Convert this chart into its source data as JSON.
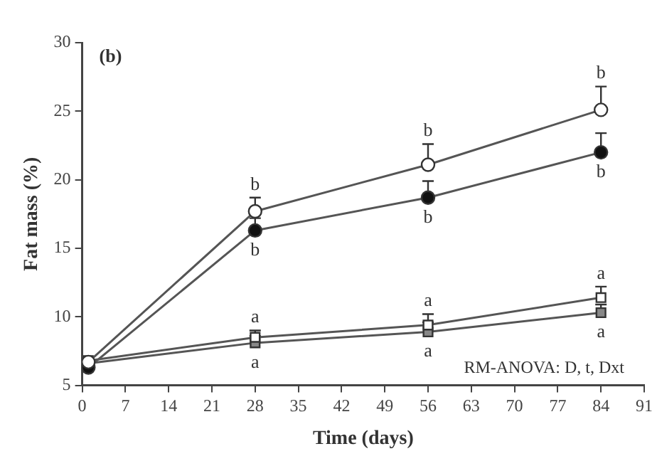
{
  "chart_data": {
    "type": "line",
    "xlabel": "Time (days)",
    "ylabel": "Fat mass (%)",
    "x": [
      1,
      28,
      56,
      84
    ],
    "xlim": [
      0,
      91
    ],
    "xticks": [
      0,
      7,
      14,
      21,
      28,
      35,
      42,
      49,
      56,
      63,
      70,
      77,
      84,
      91
    ],
    "ylim": [
      5,
      30
    ],
    "yticks": [
      5,
      10,
      15,
      20,
      25,
      30
    ],
    "grid": false,
    "legend": false,
    "line_style": "solid",
    "series": [
      {
        "color": "#ffffff",
        "marker": "circle",
        "values": [
          6.7,
          17.7,
          21.1,
          25.1
        ],
        "errors": [
          null,
          [
            17.7,
            18.7
          ],
          [
            21.1,
            22.6
          ],
          [
            25.1,
            26.8
          ]
        ]
      },
      {
        "color": "#111111",
        "marker": "circle",
        "values": [
          6.3,
          16.3,
          18.7,
          22.0
        ],
        "errors": [
          null,
          [
            16.3,
            17.2
          ],
          [
            18.7,
            19.9
          ],
          [
            22.0,
            23.4
          ]
        ]
      },
      {
        "color": "#ffffff",
        "marker": "square",
        "values": [
          6.8,
          8.5,
          9.4,
          11.4
        ],
        "errors": [
          null,
          [
            8.5,
            9.0
          ],
          [
            9.4,
            10.2
          ],
          [
            11.4,
            12.2
          ]
        ]
      },
      {
        "color": "#888888",
        "marker": "square",
        "values": [
          6.6,
          8.1,
          8.9,
          10.3
        ],
        "errors": [
          null,
          [
            8.1,
            8.6
          ],
          [
            8.9,
            9.6
          ],
          [
            10.3,
            10.9
          ]
        ]
      }
    ],
    "annotations": [
      "(b)",
      {
        "text": "b",
        "x": 28,
        "y": 17.7
      },
      {
        "text": "b",
        "x": 28,
        "y": 16.3
      },
      {
        "text": "b",
        "x": 56,
        "y": 21.1
      },
      {
        "text": "b",
        "x": 56,
        "y": 18.7
      },
      {
        "text": "b",
        "x": 84,
        "y": 25.1
      },
      {
        "text": "b",
        "x": 84,
        "y": 22.0
      },
      {
        "text": "a",
        "x": 28,
        "y": 8.5
      },
      {
        "text": "a",
        "x": 28,
        "y": 8.1
      },
      {
        "text": "a",
        "x": 56,
        "y": 9.4
      },
      {
        "text": "a",
        "x": 56,
        "y": 8.9
      },
      {
        "text": "a",
        "x": 84,
        "y": 11.4
      },
      {
        "text": "a",
        "x": 84,
        "y": 10.3
      },
      "RM-ANOVA: D, t, Dxt"
    ]
  }
}
